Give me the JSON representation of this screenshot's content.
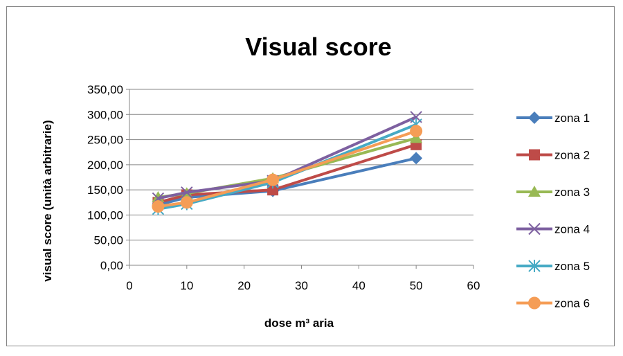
{
  "chart_data": {
    "type": "line",
    "title": "Visual score",
    "xlabel": "dose m³ aria",
    "ylabel": "visual score (unità arbitrarie)",
    "x": [
      5,
      10,
      25,
      50
    ],
    "xlim": [
      0,
      60
    ],
    "ylim": [
      0,
      350
    ],
    "x_ticks": [
      "0",
      "10",
      "20",
      "30",
      "40",
      "50",
      "60"
    ],
    "y_ticks": [
      "0,00",
      "50,00",
      "100,00",
      "150,00",
      "200,00",
      "250,00",
      "300,00",
      "350,00"
    ],
    "grid": "horizontal",
    "legend_position": "right",
    "series": [
      {
        "name": "zona 1",
        "color": "#4A7EBB",
        "marker": "diamond",
        "values": [
          120,
          135,
          148,
          213
        ]
      },
      {
        "name": "zona 2",
        "color": "#BE4B48",
        "marker": "square",
        "values": [
          125,
          140,
          150,
          240
        ]
      },
      {
        "name": "zona 3",
        "color": "#98B954",
        "marker": "triangle",
        "values": [
          135,
          143,
          173,
          253
        ]
      },
      {
        "name": "zona 4",
        "color": "#7D60A0",
        "marker": "x",
        "values": [
          133,
          145,
          168,
          295
        ]
      },
      {
        "name": "zona 5",
        "color": "#46AAC5",
        "marker": "asterisk",
        "values": [
          112,
          122,
          165,
          280
        ]
      },
      {
        "name": "zona 6",
        "color": "#F59D56",
        "marker": "circle",
        "values": [
          117,
          125,
          170,
          267
        ]
      }
    ]
  }
}
